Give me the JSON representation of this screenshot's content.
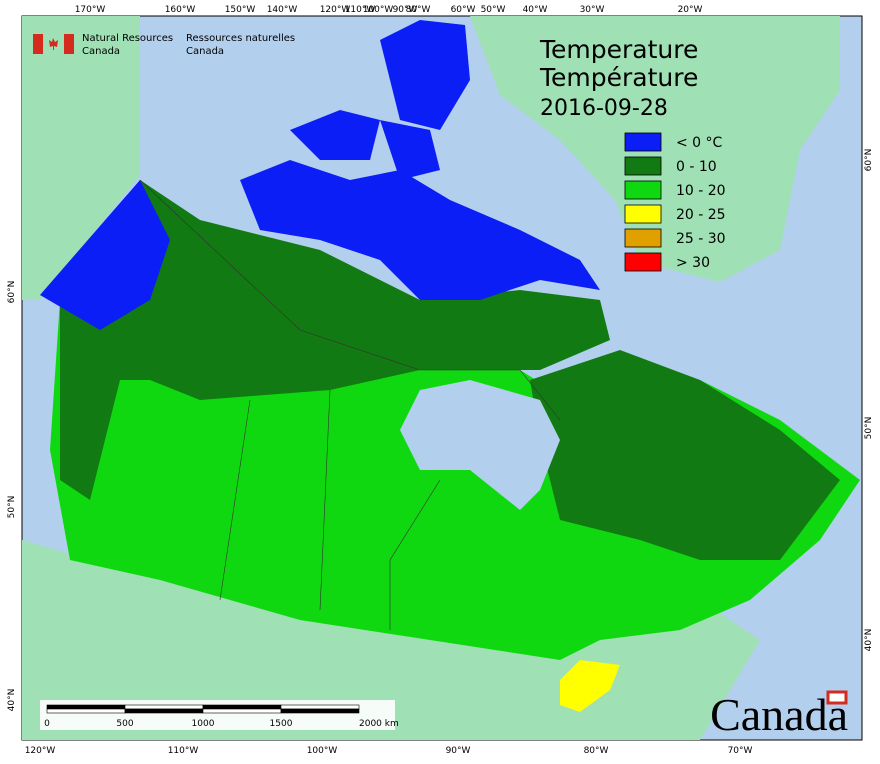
{
  "header": {
    "department_en": [
      "Natural Resources",
      "Canada"
    ],
    "department_fr": [
      "Ressources naturelles",
      "Canada"
    ]
  },
  "title": {
    "line1": "Temperature",
    "line2": "Température",
    "date": "2016-09-28"
  },
  "legend": {
    "items": [
      {
        "label": "< 0 °C",
        "color": "#0a1ef5"
      },
      {
        "label": "0 - 10",
        "color": "#127a12"
      },
      {
        "label": "10 - 20",
        "color": "#10d810"
      },
      {
        "label": "20 - 25",
        "color": "#ffff00"
      },
      {
        "label": "25 - 30",
        "color": "#e0a000"
      },
      {
        "label": "> 30",
        "color": "#ff0000"
      }
    ]
  },
  "graticule": {
    "top": [
      "170°W",
      "160°W",
      "150°W",
      "140°W",
      "120°W",
      "110°W",
      "100°W",
      "90°W",
      "80°W",
      "60°W",
      "50°W",
      "40°W",
      "30°W",
      "20°W"
    ],
    "bottom": [
      "120°W",
      "110°W",
      "100°W",
      "90°W",
      "80°W",
      "70°W"
    ],
    "left": [
      "60°N",
      "50°N",
      "40°N"
    ],
    "right": [
      "60°N",
      "50°N",
      "40°N"
    ]
  },
  "scale_bar": {
    "labels": [
      "0",
      "500",
      "1000",
      "1500",
      "2000  km"
    ]
  },
  "wordmark": "Canada"
}
